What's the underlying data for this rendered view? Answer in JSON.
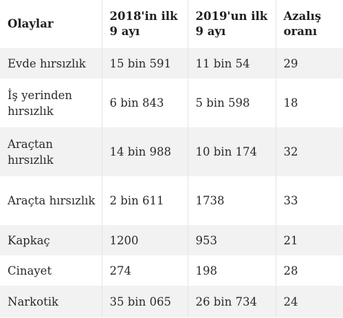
{
  "table": {
    "headers": [
      "Olaylar",
      "2018'in ilk 9 ayı",
      "2019'un ilk 9 ayı",
      "Azalış oranı"
    ],
    "rows": [
      [
        "Evde hırsızlık",
        "15 bin 591",
        "11 bin 54",
        "29"
      ],
      [
        "İş yerinden hırsızlık",
        "6 bin 843",
        "5 bin 598",
        "18"
      ],
      [
        "Araçtan hırsızlık",
        "14 bin 988",
        "10 bin 174",
        "32"
      ],
      [
        "Araçta hırsızlık",
        "2 bin 611",
        "1738",
        "33"
      ],
      [
        "Kapkaç",
        "1200",
        "953",
        "21"
      ],
      [
        "Cinayet",
        "274",
        "198",
        "28"
      ],
      [
        "Narkotik",
        "35 bin 065",
        "26 bin 734",
        "24"
      ]
    ]
  }
}
